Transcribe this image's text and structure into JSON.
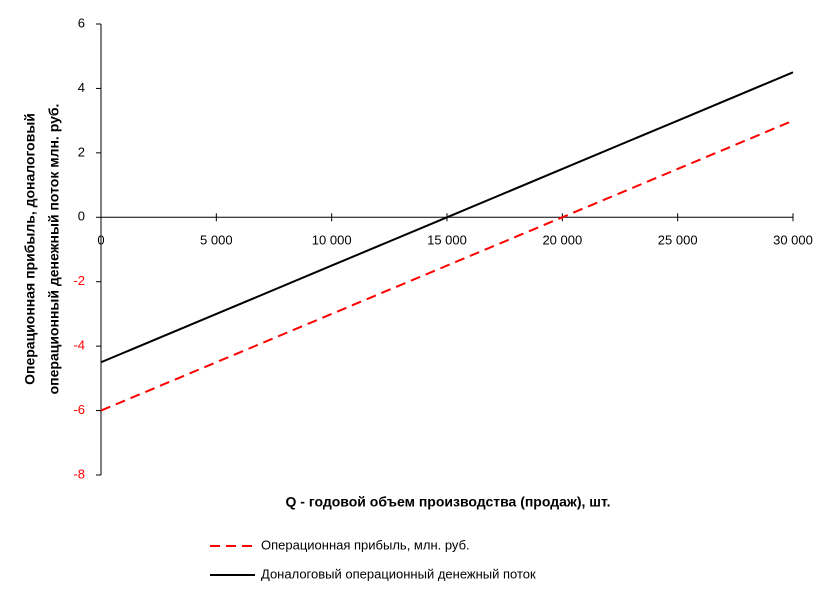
{
  "chart_data": {
    "type": "line",
    "xlabel": "Q - годовой объем производства (продаж), шт.",
    "ylabel": [
      "Операционная прибыль, доналоговый",
      "операционный денежный поток млн. руб."
    ],
    "x": [
      0,
      5000,
      10000,
      15000,
      20000,
      25000,
      30000
    ],
    "series": [
      {
        "name": "Операционная прибыль, млн. руб.",
        "color": "#ff0000",
        "dash": true,
        "values": [
          -6,
          -4.5,
          -3,
          -1.5,
          0,
          1.5,
          3
        ]
      },
      {
        "name": "Доналоговый операционный денежный поток",
        "color": "#000000",
        "dash": false,
        "values": [
          -4.5,
          -3,
          -1.5,
          0,
          1.5,
          3,
          4.5
        ]
      }
    ],
    "xlim": [
      0,
      30000
    ],
    "xticks": [
      0,
      {
        "value": 5000,
        "label": "5 000"
      },
      {
        "value": 10000,
        "label": "10 000"
      },
      {
        "value": 15000,
        "label": "15 000"
      },
      {
        "value": 20000,
        "label": "20 000"
      },
      {
        "value": 25000,
        "label": "25 000"
      },
      {
        "value": 30000,
        "label": "30 000"
      }
    ],
    "ylim": [
      -8,
      6
    ],
    "yticks": [
      -8,
      -6,
      -4,
      -2,
      0,
      2,
      4,
      6
    ],
    "negative_tick_color": "#ff0000",
    "legend": "bottom"
  }
}
